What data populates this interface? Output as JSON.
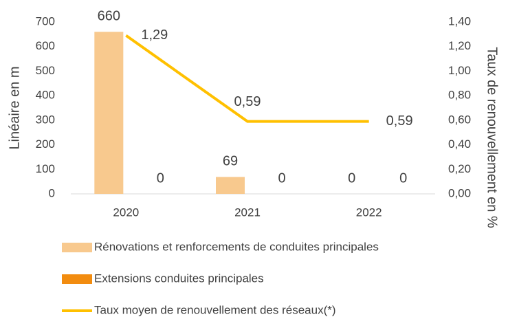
{
  "chart_data": {
    "type": "bar",
    "categories": [
      "2020",
      "2021",
      "2022"
    ],
    "y_label": "Linéaire en m",
    "y2_label": "Taux de renouvellement en %",
    "ylim": [
      0,
      700
    ],
    "yticks": [
      0,
      100,
      200,
      300,
      400,
      500,
      600,
      700
    ],
    "y2lim": [
      0,
      1.4
    ],
    "y2ticks": [
      {
        "value": 0,
        "label": "0,00"
      },
      {
        "value": 0.2,
        "label": "0,20"
      },
      {
        "value": 0.4,
        "label": "0,40"
      },
      {
        "value": 0.6,
        "label": "0,60"
      },
      {
        "value": 0.8,
        "label": "0,80"
      },
      {
        "value": 1.0,
        "label": "1,00"
      },
      {
        "value": 1.2,
        "label": "1,20"
      },
      {
        "value": 1.4,
        "label": "1,40"
      }
    ],
    "grid": false,
    "legend": "bottom",
    "series": [
      {
        "name": "Rénovations et renforcements de conduites principales",
        "type": "bar",
        "color": "#f8c98e",
        "values": [
          660,
          69,
          0
        ]
      },
      {
        "name": "Extensions conduites principales",
        "type": "bar",
        "color": "#f28c0f",
        "values": [
          0,
          0,
          0
        ]
      },
      {
        "name": "Taux moyen de renouvellement des réseaux(*)",
        "type": "line",
        "axis": "y2",
        "color": "#ffc000",
        "values": [
          1.29,
          0.59,
          0.59
        ],
        "value_labels": [
          "1,29",
          "0,59",
          "0,59"
        ]
      }
    ]
  }
}
